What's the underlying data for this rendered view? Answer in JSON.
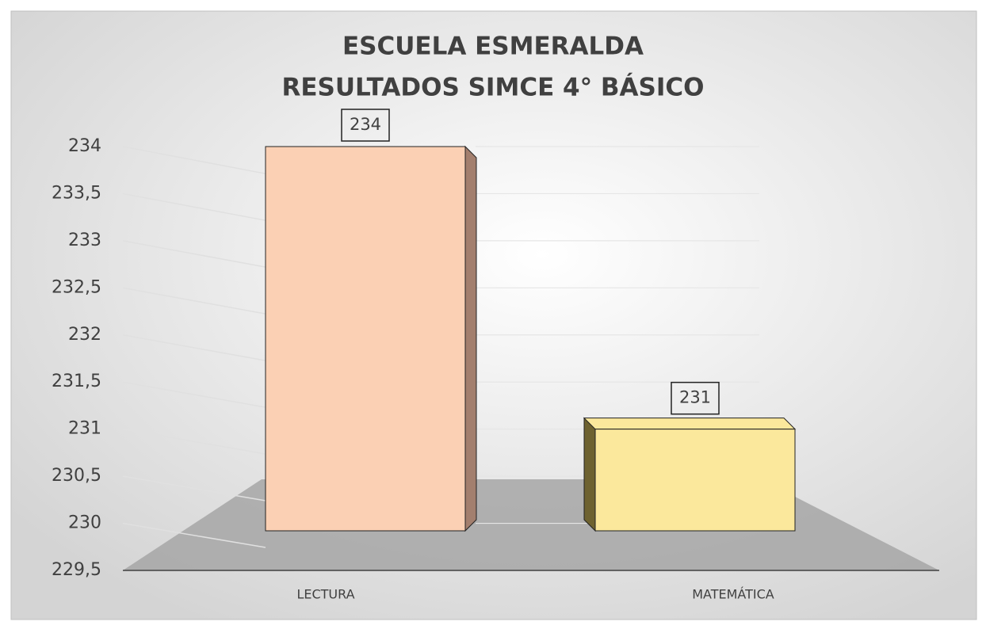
{
  "chart_data": {
    "type": "bar3d",
    "title": "ESCUELA ESMERALDA",
    "subtitle": "RESULTADOS SIMCE 4° BÁSICO",
    "categories": [
      "LECTURA",
      "MATEMÁTICA"
    ],
    "values": [
      234,
      231
    ],
    "colors": [
      "#fbd0b4",
      "#fbe89c"
    ],
    "side_colors": [
      "#a37f6e",
      "#6e6230"
    ],
    "ylim": [
      229.5,
      234
    ],
    "yticks": [
      {
        "value": 229.5,
        "label": "229,5"
      },
      230,
      {
        "value": 230.5,
        "label": "230,5"
      },
      231,
      {
        "value": 231.5,
        "label": "231,5"
      },
      232,
      {
        "value": 232.5,
        "label": "232,5"
      },
      233,
      {
        "value": 233.5,
        "label": "233,5"
      },
      234
    ],
    "grid": true
  }
}
